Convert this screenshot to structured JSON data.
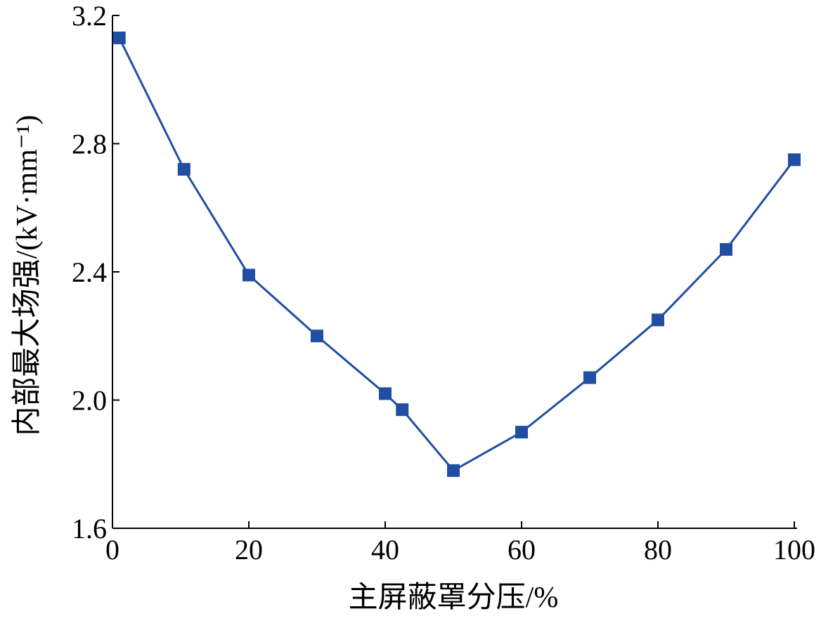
{
  "chart_data": {
    "type": "line",
    "title": "",
    "xlabel": "主屏蔽罩分压/%",
    "ylabel": "内部最大场强/(kV·mm⁻¹)",
    "xlim": [
      0,
      100
    ],
    "ylim": [
      1.6,
      3.2
    ],
    "x_ticks": [
      0,
      20,
      40,
      60,
      80,
      100
    ],
    "x_tick_labels": [
      "0",
      "20",
      "40",
      "60",
      "80",
      "100"
    ],
    "y_ticks": [
      1.6,
      2.0,
      2.4,
      2.8,
      3.2
    ],
    "y_tick_labels": [
      "1.6",
      "2.0",
      "2.4",
      "2.8",
      "3.2"
    ],
    "grid": false,
    "legend": "none",
    "series": [
      {
        "x": [
          1,
          10.5,
          20,
          30,
          40,
          42.5,
          50,
          60,
          70,
          80,
          90,
          100
        ],
        "y": [
          3.13,
          2.72,
          2.39,
          2.2,
          2.02,
          1.97,
          1.78,
          1.9,
          2.07,
          2.25,
          2.47,
          2.75
        ],
        "color": "#1f4ea3",
        "marker": "square"
      }
    ]
  }
}
